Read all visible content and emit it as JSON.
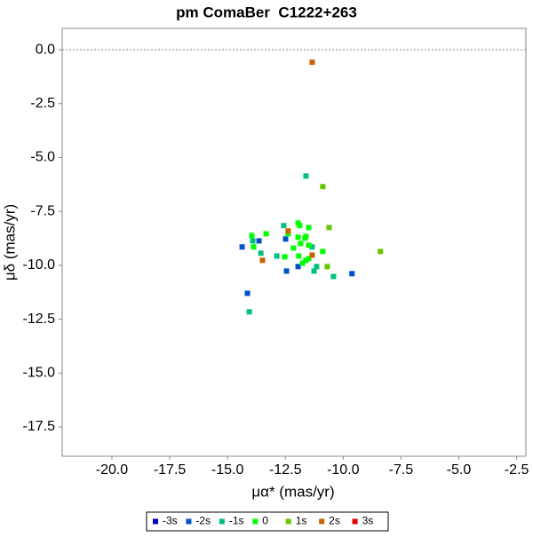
{
  "chart_data": {
    "type": "scatter",
    "title": "pm ComaBer  C1222+263",
    "x_label": "μα* (mas/yr)",
    "y_label": "μδ (mas/yr)",
    "xlim": [
      -22.15,
      -2.1
    ],
    "ylim": [
      -18.86,
      0.99
    ],
    "xticks": [
      {
        "value": -20,
        "label": "-20.0"
      },
      -17.5,
      {
        "value": -15,
        "label": "-15.0"
      },
      -12.5,
      {
        "value": -10,
        "label": "-10.0"
      },
      -7.5,
      {
        "value": -5,
        "label": "-5.0"
      },
      -2.5
    ],
    "yticks": [
      {
        "value": 0,
        "label": "0.0"
      },
      -2.5,
      {
        "value": -5,
        "label": "-5.0"
      },
      -7.5,
      {
        "value": -10,
        "label": "-10.0"
      },
      -12.5,
      {
        "value": -15,
        "label": "-15.0"
      },
      -17.5
    ],
    "reference_line": 0,
    "legend": "bottom",
    "series": [
      {
        "name": "-3s",
        "color": "#0000b4",
        "x": [],
        "values": []
      },
      {
        "name": "-2s",
        "color": "#0050c8",
        "x": [
          -14.37,
          -14.14,
          -13.64,
          -12.45,
          -12.49,
          -11.95,
          -9.62
        ],
        "values": [
          -9.15,
          -11.3,
          -8.87,
          -10.27,
          -8.78,
          -10.06,
          -10.39
        ]
      },
      {
        "name": "-1s",
        "color": "#00c080",
        "x": [
          -11.61,
          -14.06,
          -13.56,
          -13.91,
          -12.57,
          -12.87,
          -11.15,
          -11.34,
          -10.42,
          -11.26
        ],
        "values": [
          -5.86,
          -12.16,
          -9.44,
          -8.87,
          -8.16,
          -9.57,
          -10.06,
          -9.15,
          -10.52,
          -10.27
        ]
      },
      {
        "name": "0",
        "color": "#00ff00",
        "x": [
          -10.88,
          -12.15,
          -11.95,
          -11.84,
          -11.65,
          -11.49,
          -12.38,
          -11.95,
          -11.88,
          -11.61,
          -11.49,
          -11.49,
          -11.76,
          -12.53,
          -13.33,
          -13.95,
          -13.87,
          -11.92,
          -11.61
        ],
        "values": [
          -9.36,
          -9.2,
          -8.7,
          -8.99,
          -8.74,
          -9.07,
          -8.54,
          -8.04,
          -8.16,
          -8.66,
          -8.25,
          -9.69,
          -9.9,
          -9.61,
          -8.54,
          -8.62,
          -9.15,
          -9.57,
          -9.77
        ]
      },
      {
        "name": "1s",
        "color": "#64c800",
        "x": [
          -10.88,
          -10.61,
          -10.69,
          -8.39
        ],
        "values": [
          -6.35,
          -8.25,
          -10.06,
          -9.36
        ]
      },
      {
        "name": "2s",
        "color": "#c86400",
        "x": [
          -11.34,
          -13.49,
          -11.34,
          -12.38
        ],
        "values": [
          -0.58,
          -9.77,
          -9.53,
          -8.41
        ]
      },
      {
        "name": "3s",
        "color": "#e00000",
        "x": [],
        "values": []
      }
    ]
  }
}
